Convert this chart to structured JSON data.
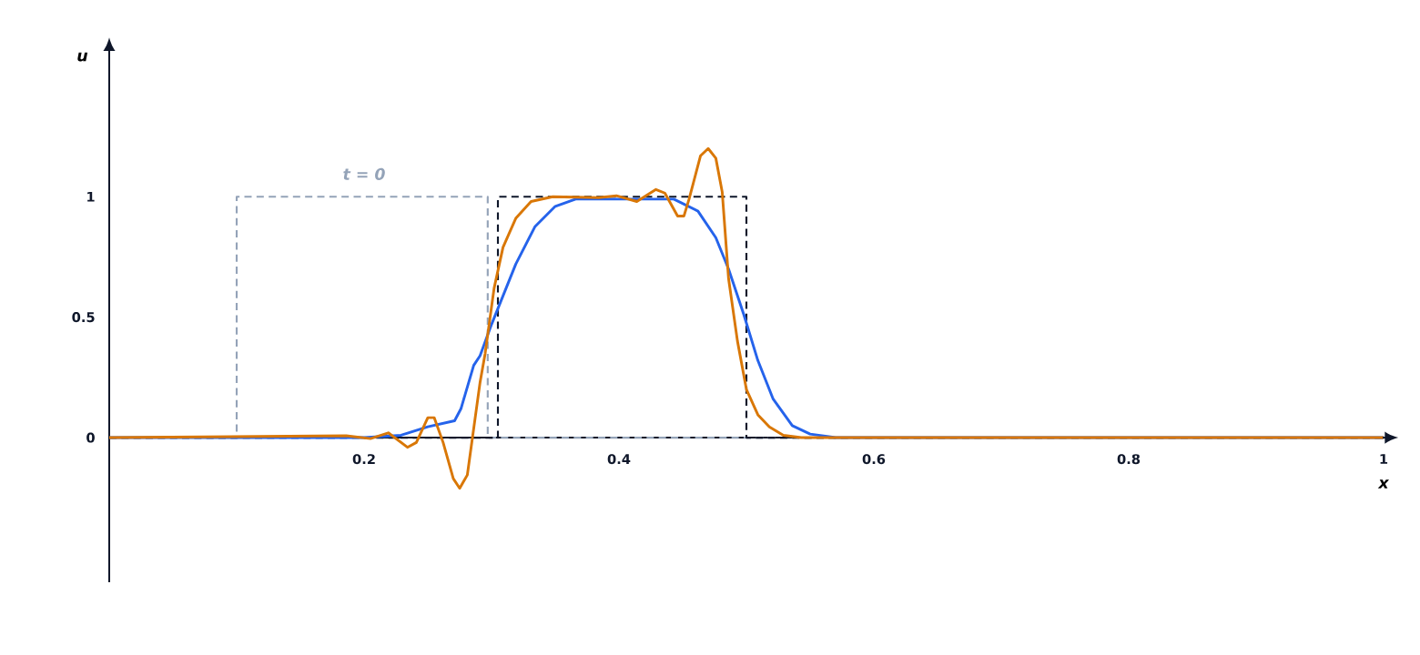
{
  "chart_data": {
    "type": "line",
    "xlabel": "x",
    "ylabel": "u",
    "xlim": [
      0,
      1
    ],
    "ylim": [
      -0.6,
      1.6
    ],
    "xticks": [
      0.2,
      0.4,
      0.6,
      0.8,
      1
    ],
    "yticks": [
      0,
      0.5,
      1
    ],
    "grid": false,
    "marker": "none",
    "annotations": [
      "t = 0"
    ],
    "series": [
      {
        "color": "#94a3b8",
        "line_style": "dashed",
        "x": [
          0,
          0.1,
          0.1,
          0.297,
          0.297,
          1
        ],
        "values": [
          0,
          0,
          1,
          1,
          0,
          0
        ]
      },
      {
        "color": "#0f172a",
        "line_style": "dashed",
        "x": [
          0,
          0.305,
          0.305,
          0.5,
          0.5,
          1
        ],
        "values": [
          0,
          0,
          1,
          1,
          0,
          0
        ]
      },
      {
        "color": "#2563eb",
        "line_style": "solid",
        "x": [
          0,
          0.2,
          0.229,
          0.25,
          0.271,
          0.276,
          0.286,
          0.291,
          0.3,
          0.319,
          0.334,
          0.35,
          0.366,
          0.443,
          0.462,
          0.476,
          0.486,
          0.498,
          0.509,
          0.521,
          0.536,
          0.55,
          0.57,
          1
        ],
        "values": [
          0,
          0,
          0.01,
          0.045,
          0.07,
          0.12,
          0.3,
          0.34,
          0.47,
          0.72,
          0.875,
          0.96,
          0.99,
          0.99,
          0.94,
          0.83,
          0.7,
          0.51,
          0.32,
          0.16,
          0.05,
          0.015,
          0,
          0
        ]
      },
      {
        "color": "#d97706",
        "line_style": "solid",
        "x": [
          0,
          0.186,
          0.205,
          0.219,
          0.234,
          0.241,
          0.25,
          0.255,
          0.262,
          0.27,
          0.275,
          0.281,
          0.291,
          0.295,
          0.302,
          0.309,
          0.319,
          0.331,
          0.348,
          0.384,
          0.398,
          0.414,
          0.429,
          0.436,
          0.446,
          0.451,
          0.455,
          0.464,
          0.47,
          0.476,
          0.481,
          0.486,
          0.493,
          0.5,
          0.509,
          0.518,
          0.529,
          0.543,
          1
        ],
        "values": [
          0,
          0.008,
          -0.004,
          0.02,
          -0.04,
          -0.02,
          0.083,
          0.083,
          -0.02,
          -0.17,
          -0.21,
          -0.155,
          0.23,
          0.35,
          0.62,
          0.79,
          0.91,
          0.98,
          1.0,
          0.996,
          1.004,
          0.98,
          1.03,
          1.015,
          0.92,
          0.92,
          0.99,
          1.17,
          1.2,
          1.16,
          1.02,
          0.66,
          0.4,
          0.2,
          0.095,
          0.045,
          0.01,
          0,
          0
        ]
      }
    ]
  }
}
